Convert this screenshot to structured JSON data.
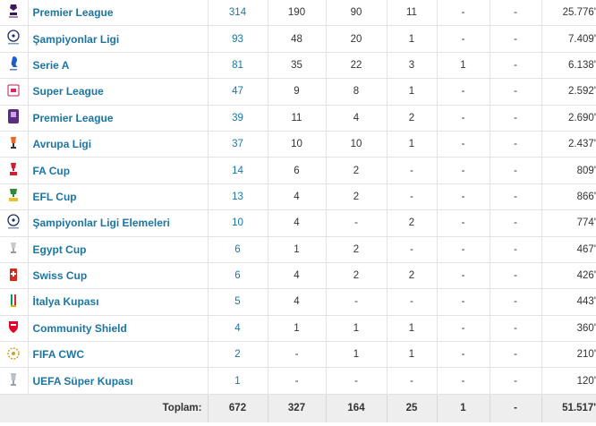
{
  "rows": [
    {
      "competition": "Premier League",
      "icon": "premier-league-logo-icon",
      "apps": "314",
      "goals": "190",
      "assists": "90",
      "yellow": "11",
      "yellow_red": "-",
      "red": "-",
      "minutes": "25.776'"
    },
    {
      "competition": "Şampiyonlar Ligi",
      "icon": "champions-league-logo-icon",
      "apps": "93",
      "goals": "48",
      "assists": "20",
      "yellow": "1",
      "yellow_red": "-",
      "red": "-",
      "minutes": "7.409'"
    },
    {
      "competition": "Serie A",
      "icon": "serie-a-logo-icon",
      "apps": "81",
      "goals": "35",
      "assists": "22",
      "yellow": "3",
      "yellow_red": "1",
      "red": "-",
      "minutes": "6.138'"
    },
    {
      "competition": "Super League",
      "icon": "super-league-logo-icon",
      "apps": "47",
      "goals": "9",
      "assists": "8",
      "yellow": "1",
      "yellow_red": "-",
      "red": "-",
      "minutes": "2.592'"
    },
    {
      "competition": "Premier League",
      "icon": "egyptian-premier-league-logo-icon",
      "apps": "39",
      "goals": "11",
      "assists": "4",
      "yellow": "2",
      "yellow_red": "-",
      "red": "-",
      "minutes": "2.690'"
    },
    {
      "competition": "Avrupa Ligi",
      "icon": "europa-league-logo-icon",
      "apps": "37",
      "goals": "10",
      "assists": "10",
      "yellow": "1",
      "yellow_red": "-",
      "red": "-",
      "minutes": "2.437'"
    },
    {
      "competition": "FA Cup",
      "icon": "fa-cup-logo-icon",
      "apps": "14",
      "goals": "6",
      "assists": "2",
      "yellow": "-",
      "yellow_red": "-",
      "red": "-",
      "minutes": "809'"
    },
    {
      "competition": "EFL Cup",
      "icon": "efl-cup-logo-icon",
      "apps": "13",
      "goals": "4",
      "assists": "2",
      "yellow": "-",
      "yellow_red": "-",
      "red": "-",
      "minutes": "866'"
    },
    {
      "competition": "Şampiyonlar Ligi Elemeleri",
      "icon": "champions-league-qualifying-logo-icon",
      "apps": "10",
      "goals": "4",
      "assists": "-",
      "yellow": "2",
      "yellow_red": "-",
      "red": "-",
      "minutes": "774'"
    },
    {
      "competition": "Egypt Cup",
      "icon": "egypt-cup-logo-icon",
      "apps": "6",
      "goals": "1",
      "assists": "2",
      "yellow": "-",
      "yellow_red": "-",
      "red": "-",
      "minutes": "467'"
    },
    {
      "competition": "Swiss Cup",
      "icon": "swiss-cup-logo-icon",
      "apps": "6",
      "goals": "4",
      "assists": "2",
      "yellow": "2",
      "yellow_red": "-",
      "red": "-",
      "minutes": "426'"
    },
    {
      "competition": "İtalya Kupası",
      "icon": "coppa-italia-logo-icon",
      "apps": "5",
      "goals": "4",
      "assists": "-",
      "yellow": "-",
      "yellow_red": "-",
      "red": "-",
      "minutes": "443'"
    },
    {
      "competition": "Community Shield",
      "icon": "community-shield-logo-icon",
      "apps": "4",
      "goals": "1",
      "assists": "1",
      "yellow": "1",
      "yellow_red": "-",
      "red": "-",
      "minutes": "360'"
    },
    {
      "competition": "FIFA CWC",
      "icon": "fifa-cwc-logo-icon",
      "apps": "2",
      "goals": "-",
      "assists": "1",
      "yellow": "1",
      "yellow_red": "-",
      "red": "-",
      "minutes": "210'"
    },
    {
      "competition": "UEFA Süper Kupası",
      "icon": "uefa-super-cup-logo-icon",
      "apps": "1",
      "goals": "-",
      "assists": "-",
      "yellow": "-",
      "yellow_red": "-",
      "red": "-",
      "minutes": "120'"
    }
  ],
  "totals": {
    "label": "Toplam:",
    "apps": "672",
    "goals": "327",
    "assists": "164",
    "yellow": "25",
    "yellow_red": "1",
    "red": "-",
    "minutes": "51.517'"
  },
  "colors": {
    "link": "#1d75a3",
    "border": "#e3e3e3",
    "footer_bg": "#eeeeee"
  }
}
